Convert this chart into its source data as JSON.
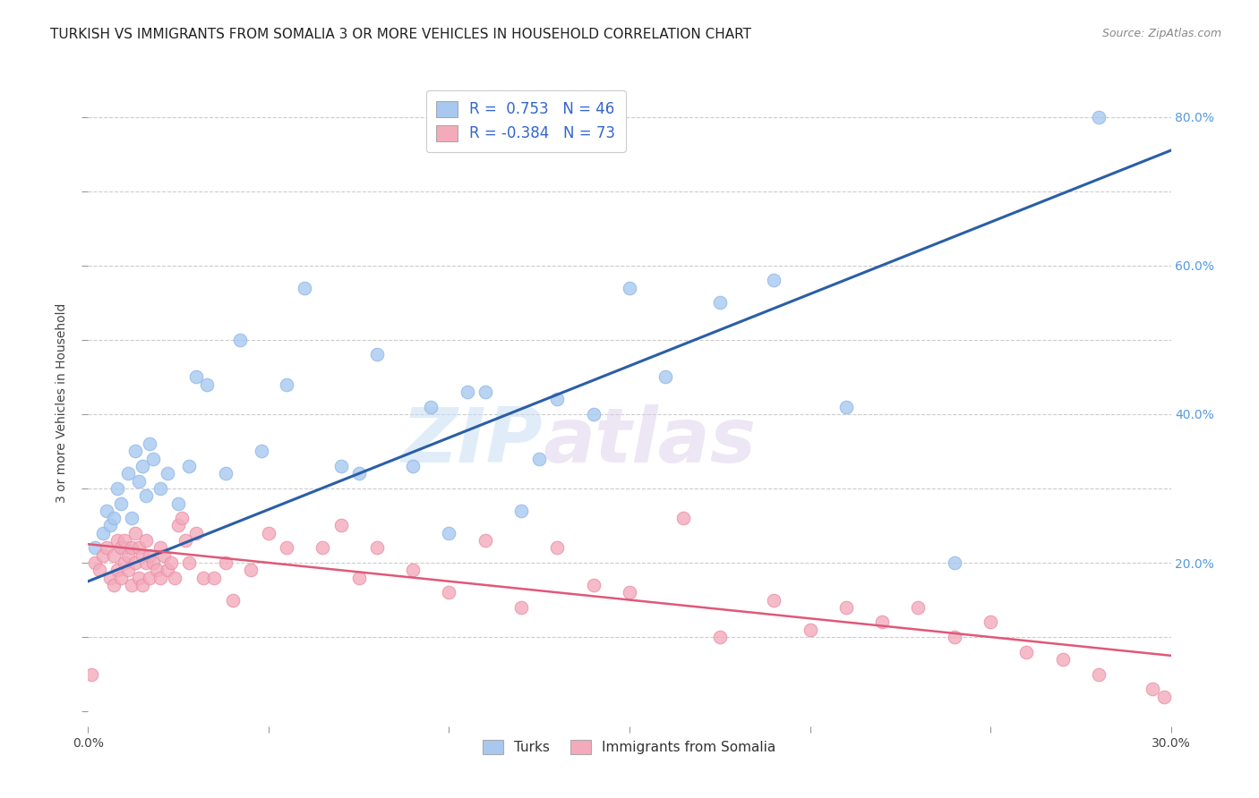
{
  "title": "TURKISH VS IMMIGRANTS FROM SOMALIA 3 OR MORE VEHICLES IN HOUSEHOLD CORRELATION CHART",
  "source": "Source: ZipAtlas.com",
  "ylabel": "3 or more Vehicles in Household",
  "x_ticks": [
    0.0,
    0.05,
    0.1,
    0.15,
    0.2,
    0.25,
    0.3
  ],
  "x_tick_labels": [
    "0.0%",
    "",
    "",
    "",
    "",
    "",
    "30.0%"
  ],
  "y_ticks_left": [
    0.0,
    0.1,
    0.2,
    0.3,
    0.4,
    0.5,
    0.6,
    0.7,
    0.8
  ],
  "y_ticks_right": [
    0.2,
    0.4,
    0.6,
    0.8
  ],
  "y_tick_labels_right": [
    "20.0%",
    "40.0%",
    "60.0%",
    "80.0%"
  ],
  "xlim": [
    0.0,
    0.3
  ],
  "ylim": [
    -0.02,
    0.85
  ],
  "blue_color": "#A8C8F0",
  "pink_color": "#F4AABB",
  "blue_line_color": "#2B5EA7",
  "pink_line_color": "#E05878",
  "blue_R": 0.753,
  "blue_N": 46,
  "pink_R": -0.384,
  "pink_N": 73,
  "legend_label_blue": "Turks",
  "legend_label_pink": "Immigrants from Somalia",
  "watermark_zip": "ZIP",
  "watermark_atlas": "atlas",
  "title_fontsize": 11,
  "source_fontsize": 9,
  "blue_line_x0": 0.0,
  "blue_line_y0": 0.175,
  "blue_line_x1": 0.3,
  "blue_line_y1": 0.755,
  "pink_line_x0": 0.0,
  "pink_line_y0": 0.225,
  "pink_line_x1": 0.3,
  "pink_line_y1": 0.075,
  "blue_x": [
    0.002,
    0.004,
    0.005,
    0.006,
    0.007,
    0.008,
    0.009,
    0.01,
    0.011,
    0.012,
    0.013,
    0.014,
    0.015,
    0.016,
    0.017,
    0.018,
    0.02,
    0.022,
    0.025,
    0.028,
    0.03,
    0.033,
    0.038,
    0.042,
    0.048,
    0.055,
    0.06,
    0.07,
    0.075,
    0.08,
    0.09,
    0.095,
    0.1,
    0.105,
    0.11,
    0.12,
    0.125,
    0.13,
    0.14,
    0.15,
    0.16,
    0.175,
    0.19,
    0.21,
    0.24,
    0.28
  ],
  "blue_y": [
    0.22,
    0.24,
    0.27,
    0.25,
    0.26,
    0.3,
    0.28,
    0.22,
    0.32,
    0.26,
    0.35,
    0.31,
    0.33,
    0.29,
    0.36,
    0.34,
    0.3,
    0.32,
    0.28,
    0.33,
    0.45,
    0.44,
    0.32,
    0.5,
    0.35,
    0.44,
    0.57,
    0.33,
    0.32,
    0.48,
    0.33,
    0.41,
    0.24,
    0.43,
    0.43,
    0.27,
    0.34,
    0.42,
    0.4,
    0.57,
    0.45,
    0.55,
    0.58,
    0.41,
    0.2,
    0.8
  ],
  "pink_x": [
    0.001,
    0.002,
    0.003,
    0.004,
    0.005,
    0.006,
    0.007,
    0.007,
    0.008,
    0.008,
    0.009,
    0.009,
    0.01,
    0.01,
    0.011,
    0.011,
    0.012,
    0.012,
    0.013,
    0.013,
    0.014,
    0.014,
    0.015,
    0.015,
    0.016,
    0.016,
    0.017,
    0.017,
    0.018,
    0.019,
    0.02,
    0.02,
    0.021,
    0.022,
    0.023,
    0.024,
    0.025,
    0.026,
    0.027,
    0.028,
    0.03,
    0.032,
    0.035,
    0.038,
    0.04,
    0.045,
    0.05,
    0.055,
    0.065,
    0.07,
    0.075,
    0.08,
    0.09,
    0.1,
    0.11,
    0.12,
    0.13,
    0.14,
    0.15,
    0.165,
    0.175,
    0.19,
    0.2,
    0.21,
    0.22,
    0.23,
    0.24,
    0.25,
    0.26,
    0.27,
    0.28,
    0.295,
    0.298
  ],
  "pink_y": [
    0.05,
    0.2,
    0.19,
    0.21,
    0.22,
    0.18,
    0.17,
    0.21,
    0.19,
    0.23,
    0.22,
    0.18,
    0.2,
    0.23,
    0.21,
    0.19,
    0.22,
    0.17,
    0.2,
    0.24,
    0.22,
    0.18,
    0.17,
    0.21,
    0.2,
    0.23,
    0.21,
    0.18,
    0.2,
    0.19,
    0.22,
    0.18,
    0.21,
    0.19,
    0.2,
    0.18,
    0.25,
    0.26,
    0.23,
    0.2,
    0.24,
    0.18,
    0.18,
    0.2,
    0.15,
    0.19,
    0.24,
    0.22,
    0.22,
    0.25,
    0.18,
    0.22,
    0.19,
    0.16,
    0.23,
    0.14,
    0.22,
    0.17,
    0.16,
    0.26,
    0.1,
    0.15,
    0.11,
    0.14,
    0.12,
    0.14,
    0.1,
    0.12,
    0.08,
    0.07,
    0.05,
    0.03,
    0.02
  ]
}
